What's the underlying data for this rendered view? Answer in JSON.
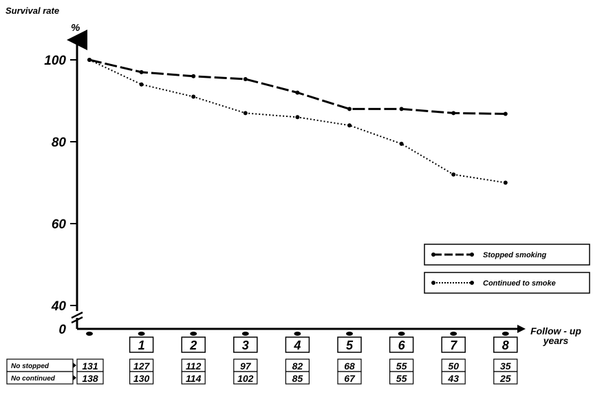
{
  "chart_data": {
    "type": "line",
    "ylabel": "Survival rate",
    "yunit": "%",
    "xlabel": "Follow - up years",
    "x": [
      0,
      1,
      2,
      3,
      4,
      5,
      6,
      7,
      8
    ],
    "x_tick_labels": [
      "1",
      "2",
      "3",
      "4",
      "5",
      "6",
      "7",
      "8"
    ],
    "y_ticks": [
      0,
      40,
      60,
      80,
      100
    ],
    "ylim": [
      0,
      100
    ],
    "axis_break": "between 0 and 40",
    "series": [
      {
        "name": "Stopped smoking",
        "style": "dashed",
        "values": [
          100,
          97,
          96,
          95.3,
          92,
          88,
          88,
          87,
          86.8
        ]
      },
      {
        "name": "Continued to smoke",
        "style": "dotted",
        "values": [
          100,
          94,
          91,
          87,
          86,
          84,
          79.5,
          72,
          70
        ]
      }
    ],
    "legend_position": "right",
    "risk_table": [
      {
        "label": "No stopped",
        "counts": [
          "131",
          "127",
          "112",
          "97",
          "82",
          "68",
          "55",
          "50",
          "35"
        ]
      },
      {
        "label": "No continued",
        "counts": [
          "138",
          "130",
          "114",
          "102",
          "85",
          "67",
          "55",
          "43",
          "25"
        ]
      }
    ]
  }
}
